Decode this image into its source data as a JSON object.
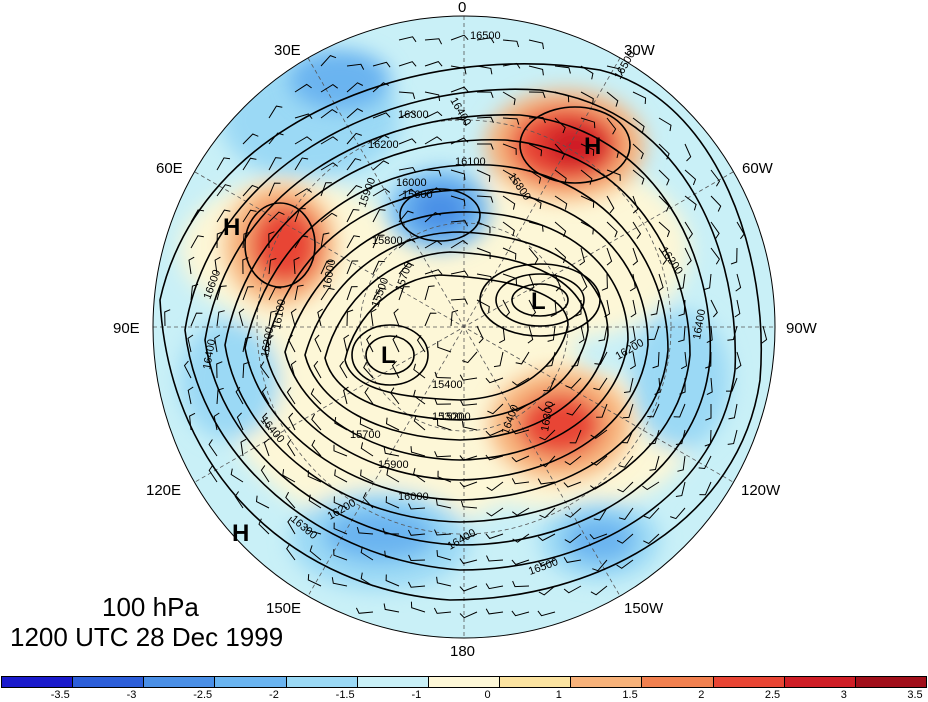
{
  "meridian_labels": {
    "lon_0": "0",
    "lon_30e": "30E",
    "lon_30w": "30W",
    "lon_60e": "60E",
    "lon_60w": "60W",
    "lon_90e": "90E",
    "lon_90w": "90W",
    "lon_120e": "120E",
    "lon_120w": "120W",
    "lon_150e": "150E",
    "lon_150w": "150W",
    "lon_180": "180"
  },
  "pressure_systems": {
    "h1": "H",
    "h2": "H",
    "h3": "H",
    "l1": "L",
    "l2": "L"
  },
  "contour_labels": [
    "16500",
    "16500",
    "16400",
    "16300",
    "16200",
    "16100",
    "16000",
    "15900",
    "15800",
    "15800",
    "15700",
    "15600",
    "15500",
    "15400",
    "15300",
    "15200",
    "16600",
    "16400",
    "16200",
    "16200",
    "16400",
    "16300",
    "16200",
    "16000",
    "15900",
    "15700",
    "16300",
    "16400",
    "16200",
    "16100",
    "16000",
    "16400",
    "16500",
    "16400"
  ],
  "title": {
    "level": "100 hPa",
    "time": "1200 UTC 28 Dec 1999"
  },
  "colorbar": {
    "colors": [
      "#1a1acc",
      "#2c5ed9",
      "#4a8fe6",
      "#6ab4f0",
      "#9bd9f5",
      "#c9f0f7",
      "#fdf7d7",
      "#fbe3a1",
      "#f7b27a",
      "#f1804f",
      "#e84534",
      "#cf1e26",
      "#a10f1a"
    ],
    "ticks": [
      "-3.5",
      "-3",
      "-2.5",
      "-2",
      "-1.5",
      "-1",
      "0",
      "1",
      "1.5",
      "2",
      "2.5",
      "3",
      "3.5"
    ]
  },
  "anomaly_colors": {
    "strong_neg": "#4a8fe6",
    "neg": "#6ab4f0",
    "weak_neg": "#9bd9f5",
    "near_zero": "#c9f0f7",
    "weak_pos": "#fdf7d7",
    "pos": "#f7b27a",
    "strong_pos": "#e84534",
    "max_pos": "#cf1e26"
  }
}
